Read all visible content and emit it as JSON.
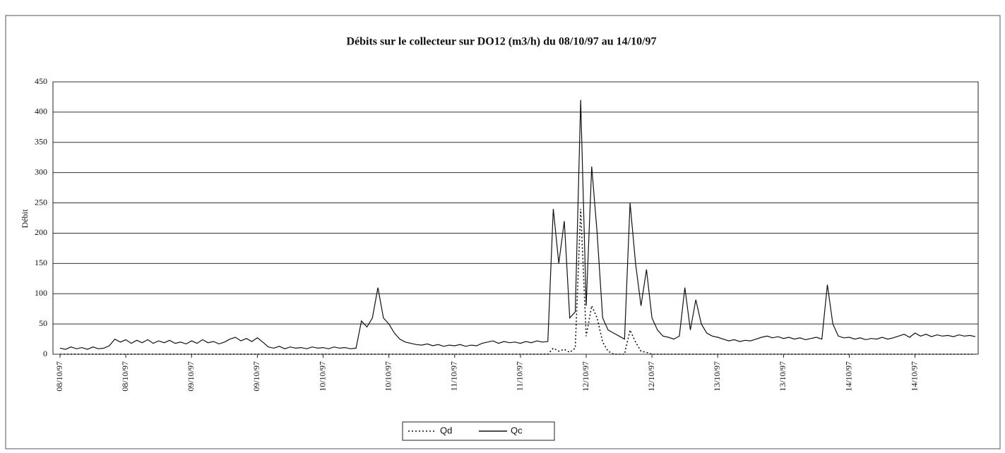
{
  "chart_data": {
    "type": "line",
    "title": "Débits sur le collecteur sur DO12 (m3/h)  du 08/10/97 au 14/10/97",
    "y_label": "Débit",
    "categories": [
      "08/10/97",
      null,
      null,
      null,
      null,
      null,
      null,
      null,
      null,
      null,
      null,
      null,
      "08/10/97",
      null,
      null,
      null,
      null,
      null,
      null,
      null,
      null,
      null,
      null,
      null,
      "09/10/97",
      null,
      null,
      null,
      null,
      null,
      null,
      null,
      null,
      null,
      null,
      null,
      "09/10/97",
      null,
      null,
      null,
      null,
      null,
      null,
      null,
      null,
      null,
      null,
      null,
      "10/10/97",
      null,
      null,
      null,
      null,
      null,
      null,
      null,
      null,
      null,
      null,
      null,
      "10/10/97",
      null,
      null,
      null,
      null,
      null,
      null,
      null,
      null,
      null,
      null,
      null,
      "11/10/97",
      null,
      null,
      null,
      null,
      null,
      null,
      null,
      null,
      null,
      null,
      null,
      "11/10/97",
      null,
      null,
      null,
      null,
      null,
      null,
      null,
      null,
      null,
      null,
      null,
      "12/10/97",
      null,
      null,
      null,
      null,
      null,
      null,
      null,
      null,
      null,
      null,
      null,
      "12/10/97",
      null,
      null,
      null,
      null,
      null,
      null,
      null,
      null,
      null,
      null,
      null,
      "13/10/97",
      null,
      null,
      null,
      null,
      null,
      null,
      null,
      null,
      null,
      null,
      null,
      "13/10/97",
      null,
      null,
      null,
      null,
      null,
      null,
      null,
      null,
      null,
      null,
      null,
      "14/10/97",
      null,
      null,
      null,
      null,
      null,
      null,
      null,
      null,
      null,
      null,
      null,
      "14/10/97",
      null,
      null,
      null,
      null,
      null,
      null,
      null,
      null,
      null,
      null,
      null
    ],
    "series": [
      {
        "name": "Qd",
        "color": "#111111",
        "dash": "dotted",
        "values": [
          0,
          0,
          0,
          0,
          0,
          0,
          0,
          0,
          0,
          0,
          0,
          0,
          0,
          0,
          0,
          0,
          0,
          0,
          0,
          0,
          0,
          0,
          0,
          0,
          0,
          0,
          0,
          0,
          0,
          0,
          0,
          0,
          0,
          0,
          0,
          0,
          0,
          0,
          0,
          0,
          0,
          0,
          0,
          0,
          0,
          0,
          0,
          0,
          0,
          0,
          0,
          0,
          0,
          0,
          0,
          0,
          0,
          0,
          0,
          0,
          0,
          0,
          0,
          0,
          0,
          0,
          0,
          0,
          0,
          0,
          0,
          0,
          0,
          0,
          0,
          0,
          0,
          0,
          0,
          0,
          0,
          0,
          0,
          0,
          0,
          0,
          0,
          0,
          0,
          0,
          10,
          5,
          8,
          3,
          10,
          240,
          30,
          80,
          60,
          20,
          5,
          0,
          0,
          0,
          40,
          20,
          5,
          3,
          0,
          0,
          0,
          0,
          0,
          0,
          0,
          0,
          0,
          0,
          0,
          0,
          0,
          0,
          0,
          0,
          0,
          0,
          0,
          0,
          0,
          0,
          0,
          0,
          0,
          0,
          0,
          0,
          0,
          0,
          0,
          0,
          0,
          0,
          0,
          0,
          0,
          0,
          0,
          0,
          0,
          0,
          0,
          0,
          0,
          0,
          0,
          0,
          0,
          0,
          0,
          0,
          0,
          0,
          0,
          0,
          0,
          0,
          0,
          0
        ]
      },
      {
        "name": "Qc",
        "color": "#111111",
        "dash": "solid",
        "values": [
          10,
          8,
          12,
          9,
          11,
          8,
          12,
          9,
          10,
          14,
          25,
          20,
          24,
          18,
          23,
          19,
          24,
          18,
          22,
          19,
          23,
          18,
          20,
          17,
          22,
          18,
          24,
          19,
          21,
          17,
          20,
          25,
          28,
          22,
          26,
          21,
          27,
          20,
          12,
          10,
          13,
          9,
          12,
          10,
          11,
          9,
          12,
          10,
          11,
          9,
          12,
          10,
          11,
          9,
          10,
          55,
          45,
          60,
          110,
          60,
          50,
          35,
          25,
          20,
          18,
          16,
          15,
          17,
          14,
          16,
          13,
          15,
          14,
          16,
          13,
          15,
          14,
          18,
          20,
          22,
          18,
          21,
          19,
          20,
          18,
          21,
          19,
          22,
          20,
          21,
          240,
          150,
          220,
          60,
          70,
          420,
          80,
          310,
          200,
          60,
          40,
          35,
          30,
          25,
          250,
          150,
          80,
          140,
          60,
          40,
          30,
          28,
          25,
          30,
          110,
          40,
          90,
          50,
          35,
          30,
          28,
          25,
          22,
          24,
          21,
          23,
          22,
          25,
          28,
          30,
          27,
          29,
          26,
          28,
          25,
          27,
          24,
          26,
          28,
          25,
          115,
          50,
          30,
          27,
          28,
          25,
          27,
          24,
          26,
          25,
          28,
          25,
          27,
          30,
          33,
          28,
          35,
          30,
          33,
          29,
          32,
          30,
          31,
          29,
          32,
          30,
          31,
          29
        ]
      }
    ],
    "ylim": [
      0,
      450
    ],
    "yticks": [
      0,
      50,
      100,
      150,
      200,
      250,
      300,
      350,
      400,
      450
    ],
    "grid": true,
    "legend": "bottom"
  }
}
